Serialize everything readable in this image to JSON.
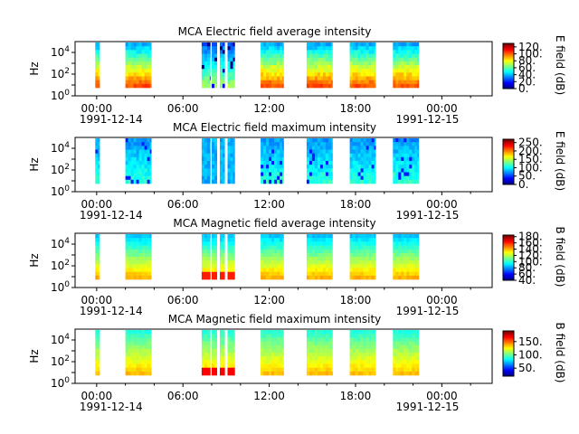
{
  "chart_data": [
    {
      "type": "heatmap",
      "title": "MCA  Electric field average intensity",
      "ylabel": "Hz",
      "yscale": "log",
      "ylim": [
        1,
        100000
      ],
      "y_ticks": [
        {
          "base": "10",
          "exp": "0"
        },
        {
          "base": "10",
          "exp": "2"
        },
        {
          "base": "10",
          "exp": "4"
        }
      ],
      "x_ticks": [
        "00:00",
        "06:00",
        "12:00",
        "18:00",
        "00:00"
      ],
      "x_start_date": "1991-12-14",
      "x_end_date": "1991-12-15",
      "colorbar_label": "E field (dB)",
      "colorbar_range": [
        0,
        130
      ],
      "colorbar_ticks": [
        "0.",
        "20.",
        "40.",
        "60.",
        "80.",
        "100.",
        "120."
      ]
    },
    {
      "type": "heatmap",
      "title": "MCA  Electric field maximum intensity",
      "ylabel": "Hz",
      "yscale": "log",
      "ylim": [
        1,
        100000
      ],
      "y_ticks": [
        {
          "base": "10",
          "exp": "0"
        },
        {
          "base": "10",
          "exp": "2"
        },
        {
          "base": "10",
          "exp": "4"
        }
      ],
      "x_ticks": [
        "00:00",
        "06:00",
        "12:00",
        "18:00",
        "00:00"
      ],
      "x_start_date": "1991-12-14",
      "x_end_date": "1991-12-15",
      "colorbar_label": "E field (dB)",
      "colorbar_range": [
        0,
        270
      ],
      "colorbar_ticks": [
        "0.",
        "50.",
        "100.",
        "150.",
        "200.",
        "250."
      ]
    },
    {
      "type": "heatmap",
      "title": "MCA  Magnetic field average intensity",
      "ylabel": "Hz",
      "yscale": "log",
      "ylim": [
        1,
        100000
      ],
      "y_ticks": [
        {
          "base": "10",
          "exp": "0"
        },
        {
          "base": "10",
          "exp": "2"
        },
        {
          "base": "10",
          "exp": "4"
        }
      ],
      "x_ticks": [
        "00:00",
        "06:00",
        "12:00",
        "18:00",
        "00:00"
      ],
      "x_start_date": "1991-12-14",
      "x_end_date": "1991-12-15",
      "colorbar_label": "B field (dB)",
      "colorbar_range": [
        40,
        185
      ],
      "colorbar_ticks": [
        "40.",
        "60.",
        "80.",
        "100.",
        "120.",
        "140.",
        "160.",
        "180."
      ]
    },
    {
      "type": "heatmap",
      "title": "MCA  Magnetic field maximum intensity",
      "ylabel": "Hz",
      "yscale": "log",
      "ylim": [
        1,
        100000
      ],
      "y_ticks": [
        {
          "base": "10",
          "exp": "0"
        },
        {
          "base": "10",
          "exp": "2"
        },
        {
          "base": "10",
          "exp": "4"
        }
      ],
      "x_ticks": [
        "00:00",
        "06:00",
        "12:00",
        "18:00",
        "00:00"
      ],
      "x_start_date": "1991-12-14",
      "x_end_date": "1991-12-15",
      "colorbar_label": "B field (dB)",
      "colorbar_range": [
        20,
        190
      ],
      "colorbar_ticks": [
        "50.",
        "100.",
        "150."
      ]
    }
  ]
}
